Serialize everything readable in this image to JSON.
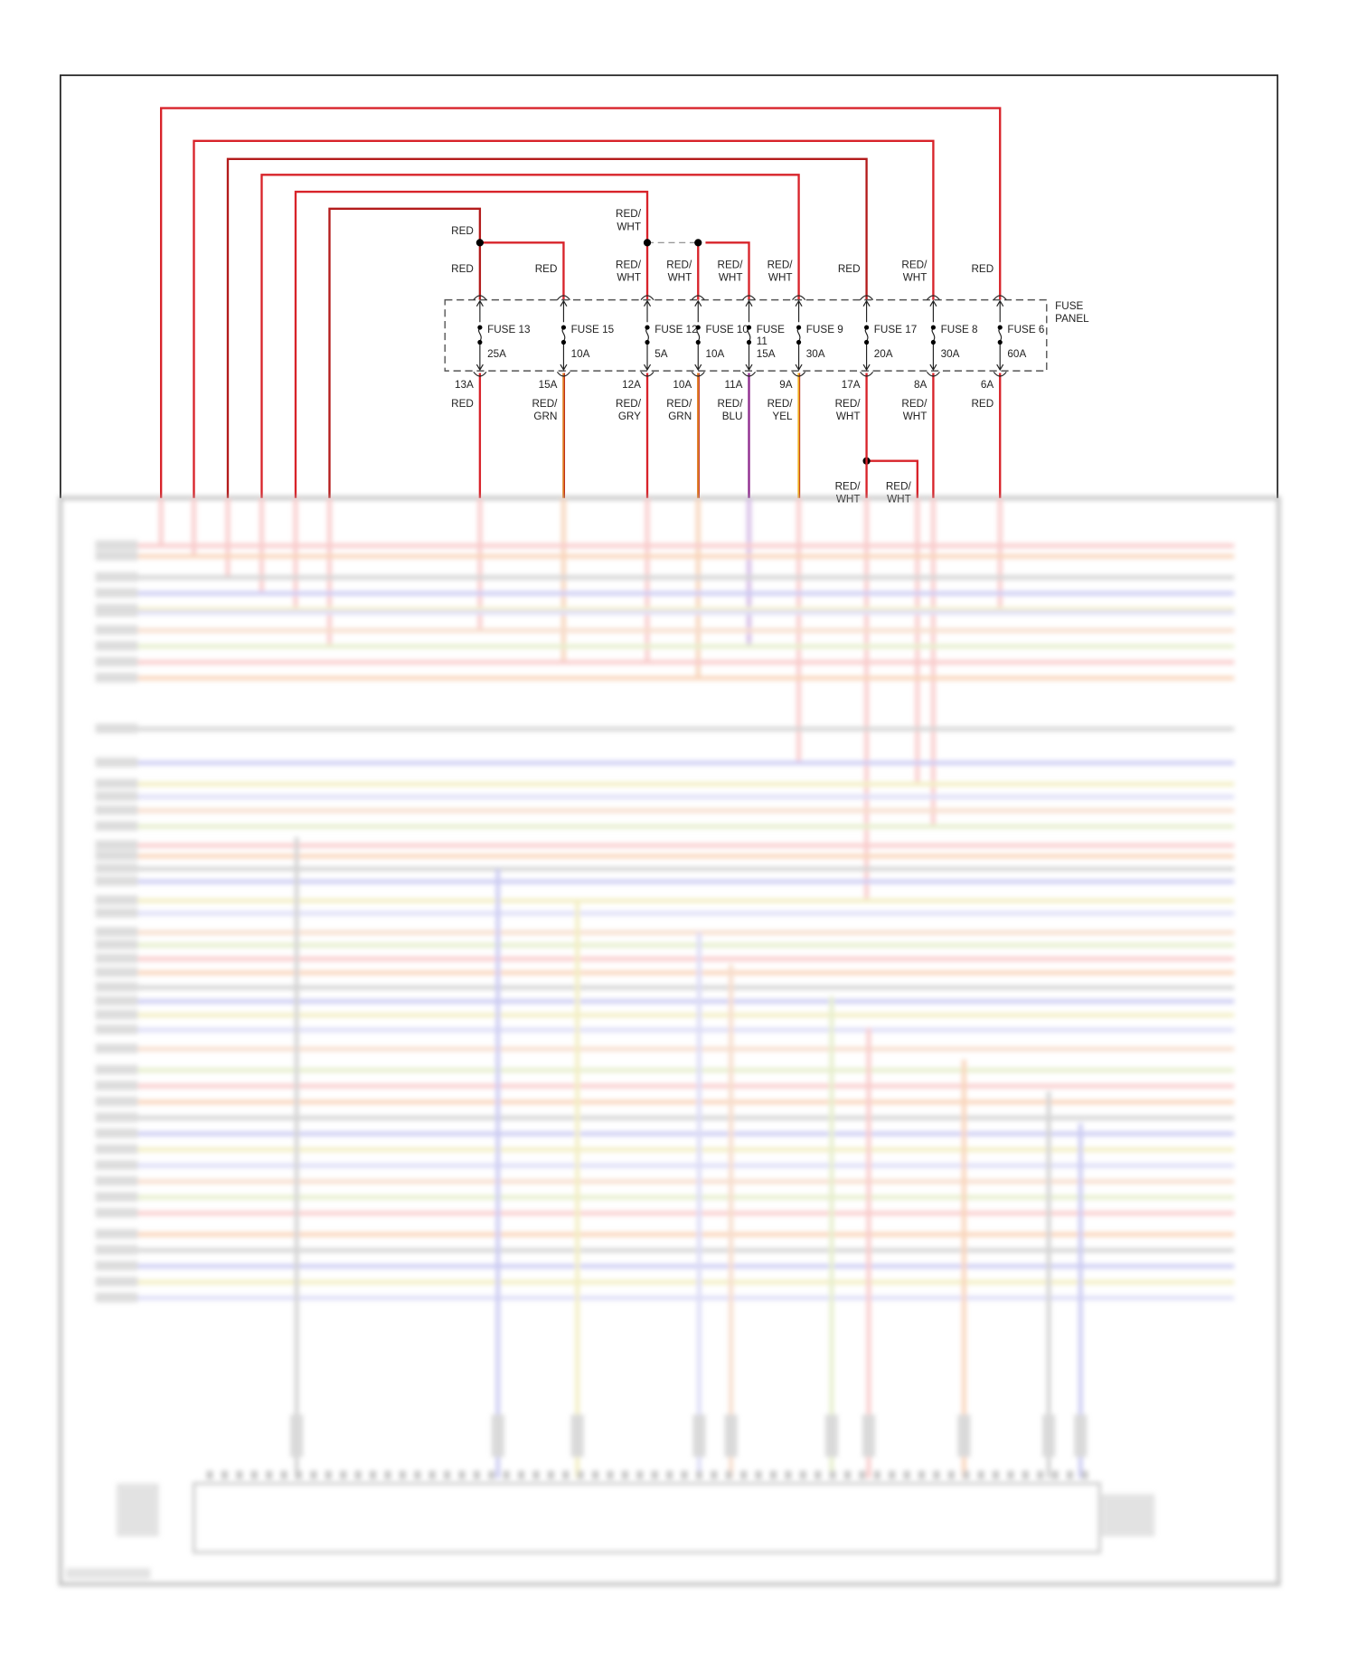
{
  "panel_label": [
    "FUSE",
    "PANEL"
  ],
  "colors": {
    "red": "#d8232a",
    "dark_red": "#b31b1b",
    "orange": "#e07a1f",
    "purple": "#8e2a8e",
    "yellow": "#f0b020",
    "frame": "#222222",
    "dashed": "#555555"
  },
  "fuses": [
    {
      "name": "FUSE 13",
      "rating": "25A",
      "in_label": [
        "RED"
      ],
      "out_pin": "13A",
      "out_label": [
        "RED"
      ],
      "out_color": "red"
    },
    {
      "name": "FUSE 15",
      "rating": "10A",
      "in_label": [
        "RED"
      ],
      "out_pin": "15A",
      "out_label": [
        "RED/",
        "GRN"
      ],
      "out_color": "orange"
    },
    {
      "name": "FUSE 12",
      "rating": "5A",
      "in_label": [
        "RED/",
        "WHT"
      ],
      "out_pin": "12A",
      "out_label": [
        "RED/",
        "GRY"
      ],
      "out_color": "red"
    },
    {
      "name": "FUSE 10",
      "rating": "10A",
      "in_label": [
        "RED/",
        "WHT"
      ],
      "out_pin": "10A",
      "out_label": [
        "RED/",
        "GRN"
      ],
      "out_color": "orange"
    },
    {
      "name": "FUSE 11",
      "rating": "15A",
      "in_label": [
        "RED/",
        "WHT"
      ],
      "out_pin": "11A",
      "out_label": [
        "RED/",
        "BLU"
      ],
      "out_color": "purple"
    },
    {
      "name": "FUSE 9",
      "rating": "30A",
      "in_label": [
        "RED/",
        "WHT"
      ],
      "out_pin": "9A",
      "out_label": [
        "RED/",
        "YEL"
      ],
      "out_color": "yellow"
    },
    {
      "name": "FUSE 17",
      "rating": "20A",
      "in_label": [
        "RED"
      ],
      "out_pin": "17A",
      "out_label": [
        "RED/",
        "WHT"
      ],
      "out_color": "red"
    },
    {
      "name": "FUSE 8",
      "rating": "30A",
      "in_label": [
        "RED/",
        "WHT"
      ],
      "out_pin": "8A",
      "out_label": [
        "RED/",
        "WHT"
      ],
      "out_color": "red"
    },
    {
      "name": "FUSE 6",
      "rating": "60A",
      "in_label": [
        "RED"
      ],
      "out_pin": "6A",
      "out_label": [
        "RED"
      ],
      "out_color": "red"
    }
  ],
  "splice_labels": {
    "fuse13_feed": "RED",
    "fuse12_feed": [
      "RED/",
      "WHT"
    ],
    "branch_17_left": [
      "RED/",
      "WHT"
    ],
    "branch_17_right": [
      "RED/",
      "WHT"
    ]
  },
  "blurred_wire_colors": [
    "#f4a0a0",
    "#f4b080",
    "#b0b0b0",
    "#a0a0e8",
    "#e8e090",
    "#c0c0f0",
    "#f0c0a0",
    "#d0e0a0"
  ]
}
